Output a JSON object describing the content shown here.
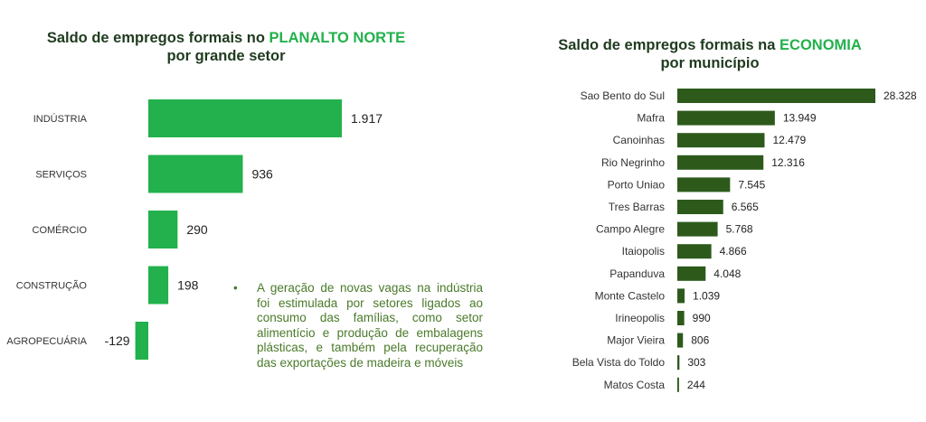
{
  "left_chart_title": {
    "part1": "Saldo de empregos formais no ",
    "highlight": "PLANALTO NORTE",
    "part2": " por grande setor"
  },
  "right_chart_title": {
    "part1": "Saldo de empregos formais na ",
    "highlight": "ECONOMIA",
    "part2": " por município"
  },
  "note": {
    "bullet": "•",
    "text": "A geração de novas vagas na indústria foi estimulada por setores ligados ao consumo das famílias, como setor alimentício e produção de embalagens plásticas, e também pela recuperação das exportações de madeira e móveis"
  },
  "colors": {
    "left_bar": "#22b14c",
    "right_bar": "#2d5a1b",
    "title_highlight": "#22b14c"
  },
  "chart_data": [
    {
      "type": "bar",
      "orientation": "horizontal",
      "categories": [
        "INDÚSTRIA",
        "SERVIÇOS",
        "COMÉRCIO",
        "CONSTRUÇÃO",
        "AGROPECUÁRIA"
      ],
      "values": [
        1917,
        936,
        290,
        198,
        -129
      ],
      "value_labels": [
        "1.917",
        "936",
        "290",
        "198",
        "-129"
      ],
      "xlim": [
        -129,
        1917
      ],
      "grid": false
    },
    {
      "type": "bar",
      "orientation": "horizontal",
      "categories": [
        "Sao Bento do Sul",
        "Mafra",
        "Canoinhas",
        "Rio Negrinho",
        "Porto Uniao",
        "Tres Barras",
        "Campo Alegre",
        "Itaiopolis",
        "Papanduva",
        "Monte Castelo",
        "Irineopolis",
        "Major Vieira",
        "Bela Vista do Toldo",
        "Matos Costa"
      ],
      "values": [
        28328,
        13949,
        12479,
        12316,
        7545,
        6565,
        5768,
        4866,
        4048,
        1039,
        990,
        806,
        303,
        244
      ],
      "value_labels": [
        "28.328",
        "13.949",
        "12.479",
        "12.316",
        "7.545",
        "6.565",
        "5.768",
        "4.866",
        "4.048",
        "1.039",
        "990",
        "806",
        "303",
        "244"
      ],
      "xlim": [
        0,
        28328
      ],
      "grid": false
    }
  ]
}
